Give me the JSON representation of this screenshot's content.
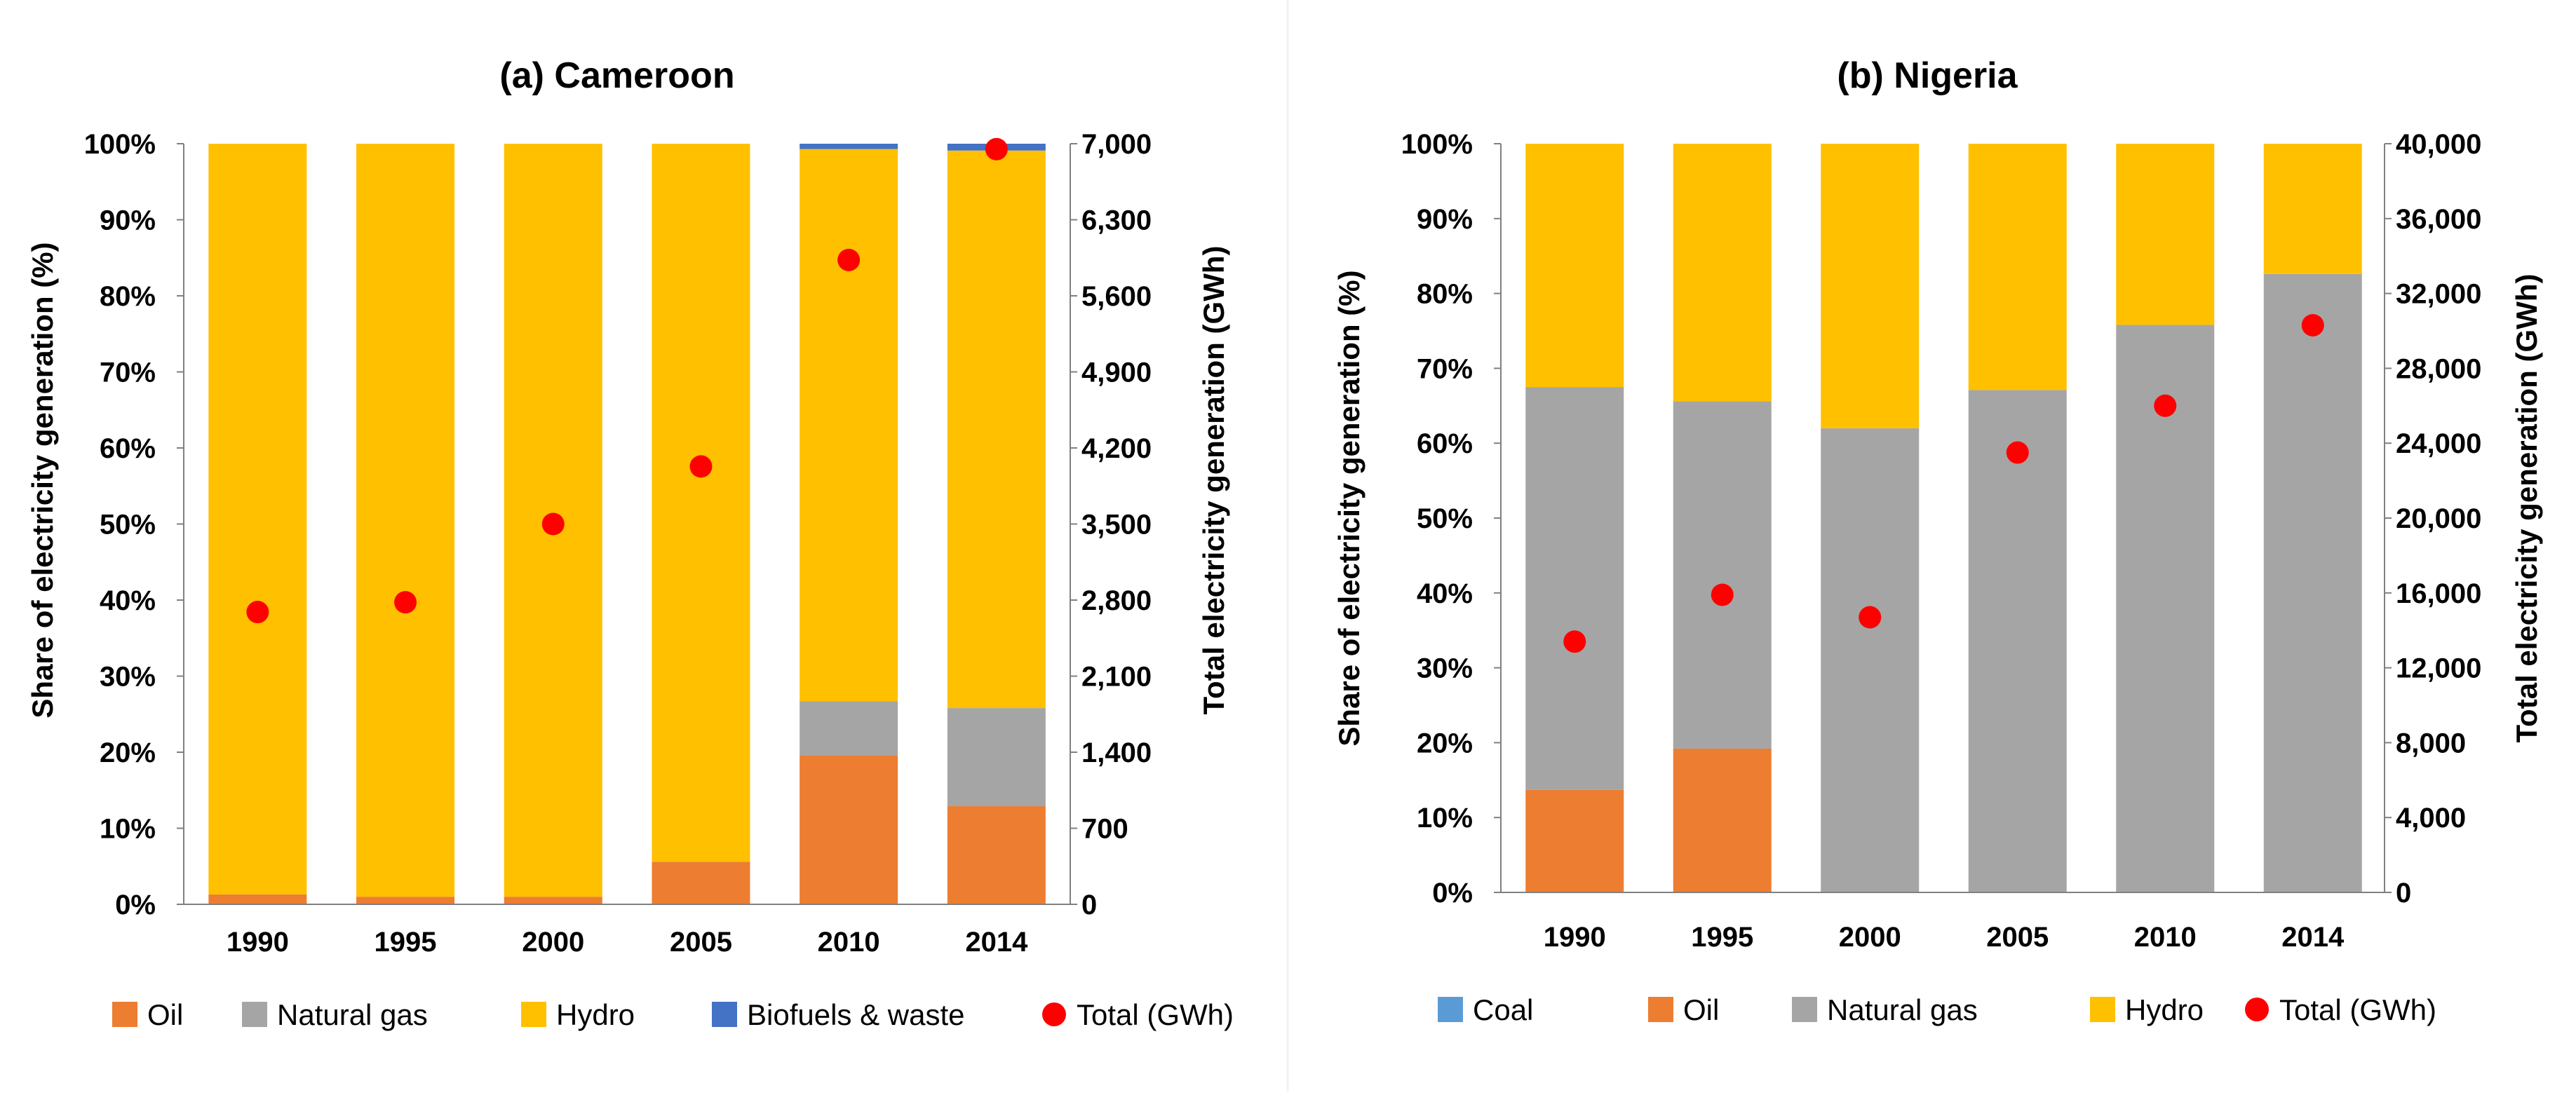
{
  "chart_data": [
    {
      "type": "bar",
      "stacked": true,
      "title": "(a) Cameroon",
      "xlabel": "",
      "ylabel": "Share of electricity generation (%)",
      "y2label": "Total electricity generation (GWh)",
      "categories": [
        "1990",
        "1995",
        "2000",
        "2005",
        "2010",
        "2014"
      ],
      "ylim": [
        0,
        100
      ],
      "y2lim": [
        0,
        7000
      ],
      "yticks": [
        "0%",
        "10%",
        "20%",
        "30%",
        "40%",
        "50%",
        "60%",
        "70%",
        "80%",
        "90%",
        "100%"
      ],
      "y2ticks": [
        "0",
        "700",
        "1,400",
        "2,100",
        "2,800",
        "3,500",
        "4,200",
        "4,900",
        "5,600",
        "6,300",
        "7,000"
      ],
      "series": [
        {
          "name": "Oil",
          "color": "#ED7D31",
          "values": [
            1.3,
            1.0,
            1.0,
            5.6,
            19.6,
            12.9
          ]
        },
        {
          "name": "Natural gas",
          "color": "#A5A5A5",
          "values": [
            0,
            0,
            0,
            0,
            7.1,
            12.9
          ]
        },
        {
          "name": "Hydro",
          "color": "#FFC000",
          "values": [
            98.7,
            99.0,
            99.0,
            94.4,
            72.6,
            73.3
          ]
        },
        {
          "name": "Biofuels & waste",
          "color": "#4472C4",
          "values": [
            0,
            0,
            0,
            0,
            0.7,
            0.9
          ]
        }
      ],
      "total": {
        "name": "Total (GWh)",
        "color": "#FF0000",
        "values": [
          2690,
          2780,
          3500,
          4030,
          5930,
          6950
        ]
      },
      "legend": [
        "Oil",
        "Natural gas",
        "Hydro",
        "Biofuels & waste",
        "Total (GWh)"
      ],
      "legend_position": "bottom"
    },
    {
      "type": "bar",
      "stacked": true,
      "title": "(b) Nigeria",
      "xlabel": "",
      "ylabel": "Share of electricity generation (%)",
      "y2label": "Total electricity generation (GWh)",
      "categories": [
        "1990",
        "1995",
        "2000",
        "2005",
        "2010",
        "2014"
      ],
      "ylim": [
        0,
        100
      ],
      "y2lim": [
        0,
        40000
      ],
      "yticks": [
        "0%",
        "10%",
        "20%",
        "30%",
        "40%",
        "50%",
        "60%",
        "70%",
        "80%",
        "90%",
        "100%"
      ],
      "y2ticks": [
        "0",
        "4,000",
        "8,000",
        "12,000",
        "16,000",
        "20,000",
        "24,000",
        "28,000",
        "32,000",
        "36,000",
        "40,000"
      ],
      "series": [
        {
          "name": "Coal",
          "color": "#5B9BD5",
          "values": [
            0,
            0,
            0,
            0,
            0,
            0
          ]
        },
        {
          "name": "Oil",
          "color": "#ED7D31",
          "values": [
            13.7,
            19.2,
            0,
            0,
            0,
            0
          ]
        },
        {
          "name": "Natural gas",
          "color": "#A5A5A5",
          "values": [
            53.8,
            46.4,
            62.0,
            67.1,
            75.8,
            82.6
          ]
        },
        {
          "name": "Hydro",
          "color": "#FFC000",
          "values": [
            32.5,
            34.4,
            38.0,
            32.9,
            24.2,
            17.4
          ]
        }
      ],
      "total": {
        "name": "Total (GWh)",
        "color": "#FF0000",
        "values": [
          13400,
          15900,
          14700,
          23500,
          26000,
          30300
        ]
      },
      "legend": [
        "Coal",
        "Oil",
        "Natural gas",
        "Hydro",
        "Total (GWh)"
      ],
      "legend_position": "bottom"
    }
  ]
}
